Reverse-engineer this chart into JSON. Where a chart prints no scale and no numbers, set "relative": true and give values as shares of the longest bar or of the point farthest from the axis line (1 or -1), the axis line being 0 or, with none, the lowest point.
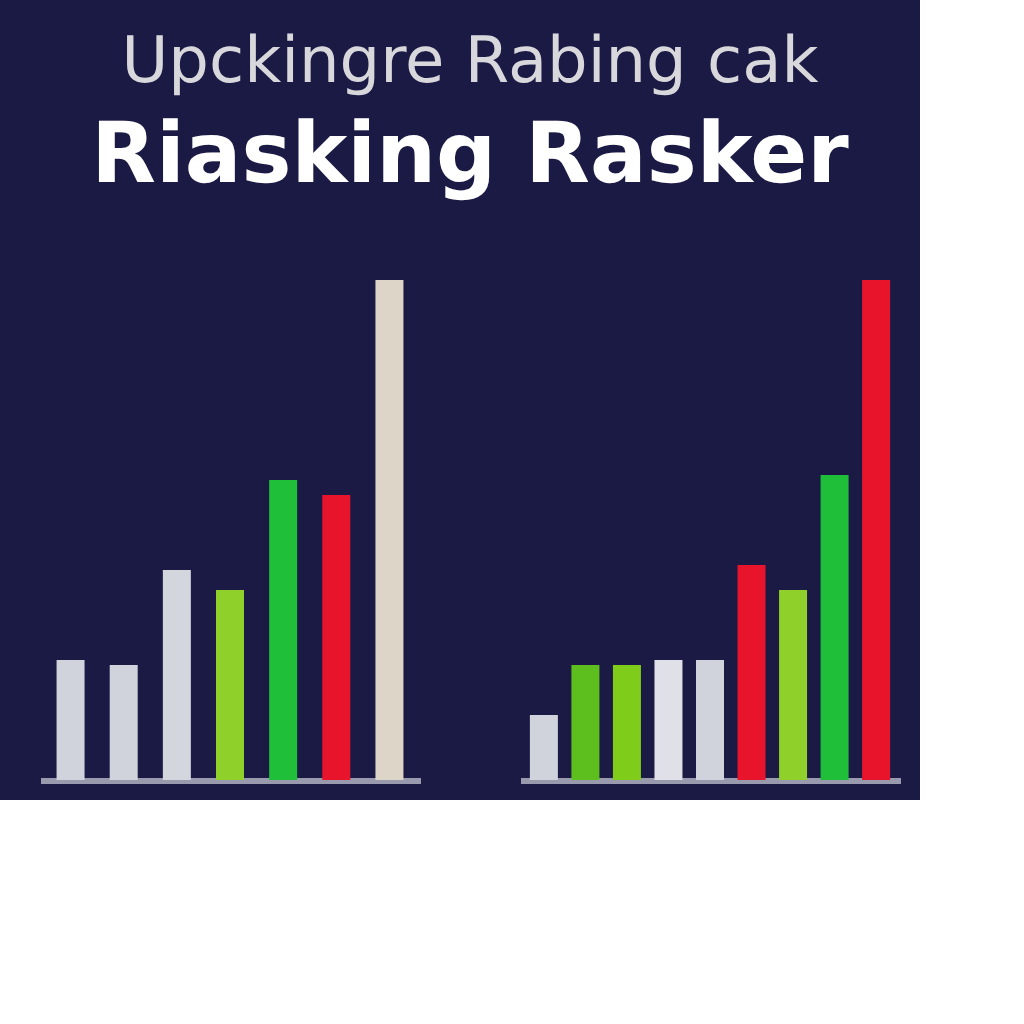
{
  "chart_data": [
    {
      "type": "bar",
      "title": "Riasking Rasker",
      "subtitle": "Upckingre Rabing cak",
      "relative": true,
      "categories": [
        null,
        null,
        null,
        null,
        null,
        null,
        null
      ],
      "values": [
        0.24,
        0.23,
        0.42,
        0.38,
        0.6,
        0.57,
        1
      ],
      "colors": [
        "#d0d2dc",
        "#d0d2dc",
        "#d4d6de",
        "#8fd12a",
        "#1fbf3a",
        "#e8142c",
        "#ddd6c8"
      ]
    },
    {
      "type": "bar",
      "relative": true,
      "categories": [
        null,
        null,
        null,
        null,
        null,
        null,
        null,
        null,
        null
      ],
      "values": [
        0.13,
        0.23,
        0.23,
        0.24,
        0.24,
        0.43,
        0.38,
        0.61,
        1
      ],
      "colors": [
        "#d0d2dc",
        "#5cbf1e",
        "#7fcc1a",
        "#e0e0e8",
        "#d0d2dc",
        "#e8142c",
        "#8fd12a",
        "#1fbf3a",
        "#e8142c"
      ]
    }
  ]
}
